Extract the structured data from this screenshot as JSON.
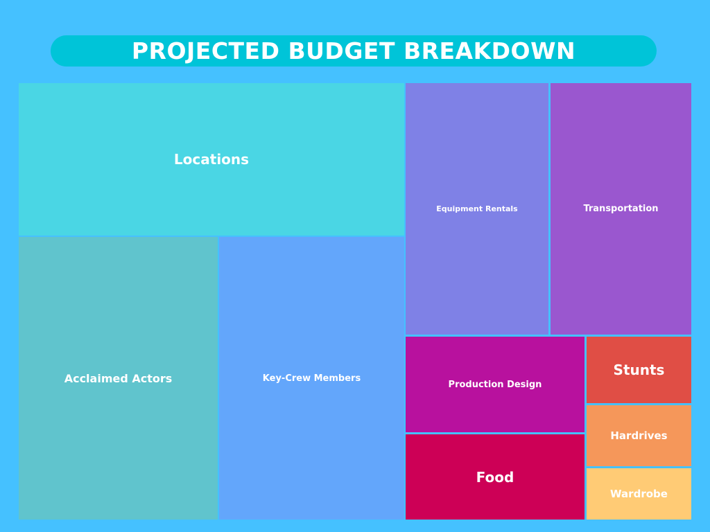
{
  "colors": {
    "background": "#45c1ff",
    "title_pill": "#00c4d8",
    "title_text": "#ffffff",
    "label_text": "#ffffff"
  },
  "chart_data": {
    "type": "treemap",
    "title": "PROJECTED BUDGET BREAKDOWN",
    "items": [
      {
        "name": "Locations",
        "value": 18.0,
        "color": "#4ad6e4"
      },
      {
        "name": "Acclaimed Actors",
        "value": 16.2,
        "color": "#60c4cd"
      },
      {
        "name": "Key-Crew Members",
        "value": 15.0,
        "color": "#63a6fb"
      },
      {
        "name": "Equipment Rentals",
        "value": 10.5,
        "color": "#7f81e6"
      },
      {
        "name": "Transportation",
        "value": 10.5,
        "color": "#9a57cf"
      },
      {
        "name": "Production Design",
        "value": 5.0,
        "color": "#b8119e"
      },
      {
        "name": "Food",
        "value": 3.5,
        "color": "#cd0056"
      },
      {
        "name": "Stunts",
        "value": 2.0,
        "color": "#e04e45"
      },
      {
        "name": "Hardrives",
        "value": 1.8,
        "color": "#f5975a"
      },
      {
        "name": "Wardrobe",
        "value": 1.5,
        "color": "#ffcb75"
      }
    ]
  }
}
